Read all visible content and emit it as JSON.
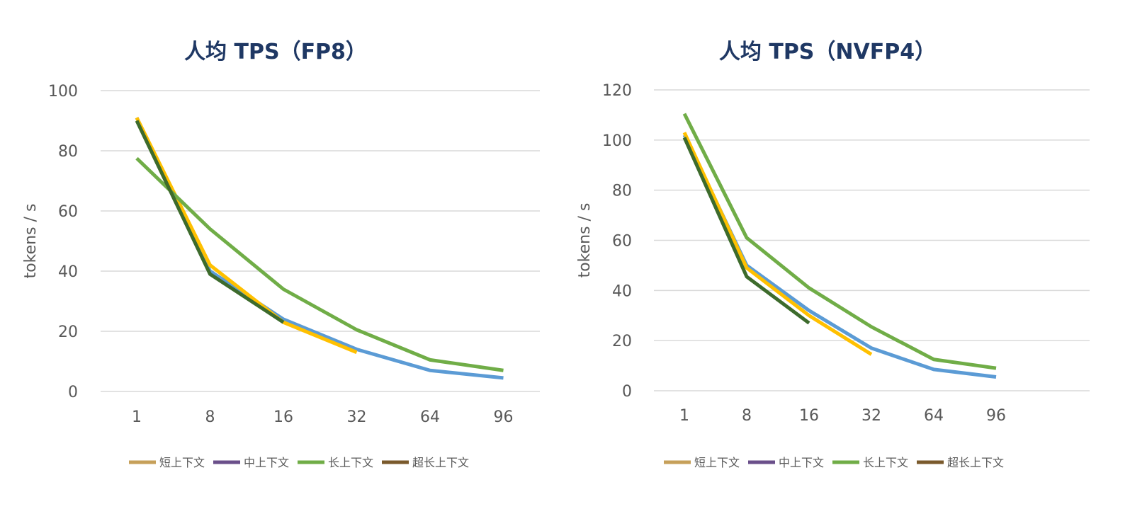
{
  "chart_data": [
    {
      "type": "line",
      "title": "人均 TPS（FP8）",
      "xlabel": "",
      "ylabel": "tokens / s",
      "ylim": [
        0,
        100
      ],
      "yticks": [
        0,
        20,
        40,
        60,
        80,
        100
      ],
      "categories": [
        "1",
        "8",
        "16",
        "32",
        "64",
        "96"
      ],
      "grid": true,
      "legend_position": "bottom-left",
      "legend": [
        {
          "name": "短上下文",
          "color": "#c6a05a"
        },
        {
          "name": "中上下文",
          "color": "#6a4f8a"
        },
        {
          "name": "长上下文",
          "color": "#70ad47"
        },
        {
          "name": "超长上下文",
          "color": "#7a5a2c"
        }
      ],
      "series": [
        {
          "color": "#5b9bd5",
          "values": [
            91,
            40,
            24,
            14,
            7,
            4.5
          ]
        },
        {
          "color": "#ffc000",
          "values": [
            91,
            42,
            23,
            13,
            null,
            null
          ]
        },
        {
          "color": "#70ad47",
          "values": [
            77.5,
            54,
            34,
            20.5,
            10.5,
            7
          ]
        },
        {
          "color": "#3d6b2c",
          "values": [
            90,
            39,
            23,
            null,
            null,
            null
          ]
        }
      ]
    },
    {
      "type": "line",
      "title": "人均 TPS（NVFP4）",
      "xlabel": "",
      "ylabel": "tokens / s",
      "ylim": [
        0,
        120
      ],
      "yticks": [
        0,
        20,
        40,
        60,
        80,
        100,
        120
      ],
      "categories": [
        "1",
        "8",
        "16",
        "32",
        "64",
        "96"
      ],
      "grid": true,
      "legend_position": "bottom-left",
      "legend": [
        {
          "name": "短上下文",
          "color": "#c6a05a"
        },
        {
          "name": "中上下文",
          "color": "#6a4f8a"
        },
        {
          "name": "长上下文",
          "color": "#70ad47"
        },
        {
          "name": "超长上下文",
          "color": "#7a5a2c"
        }
      ],
      "series": [
        {
          "color": "#5b9bd5",
          "values": [
            102,
            50,
            32,
            17,
            8.5,
            5.5
          ]
        },
        {
          "color": "#ffc000",
          "values": [
            103,
            49,
            30,
            14.5,
            null,
            null
          ]
        },
        {
          "color": "#70ad47",
          "values": [
            110.5,
            61,
            41,
            25.5,
            12.5,
            9
          ]
        },
        {
          "color": "#3d6b2c",
          "values": [
            101,
            45.5,
            27,
            null,
            null,
            null
          ]
        }
      ]
    }
  ],
  "colors": {
    "title": "#1f3864",
    "text": "#595959",
    "gridline": "#d9d9d9"
  }
}
